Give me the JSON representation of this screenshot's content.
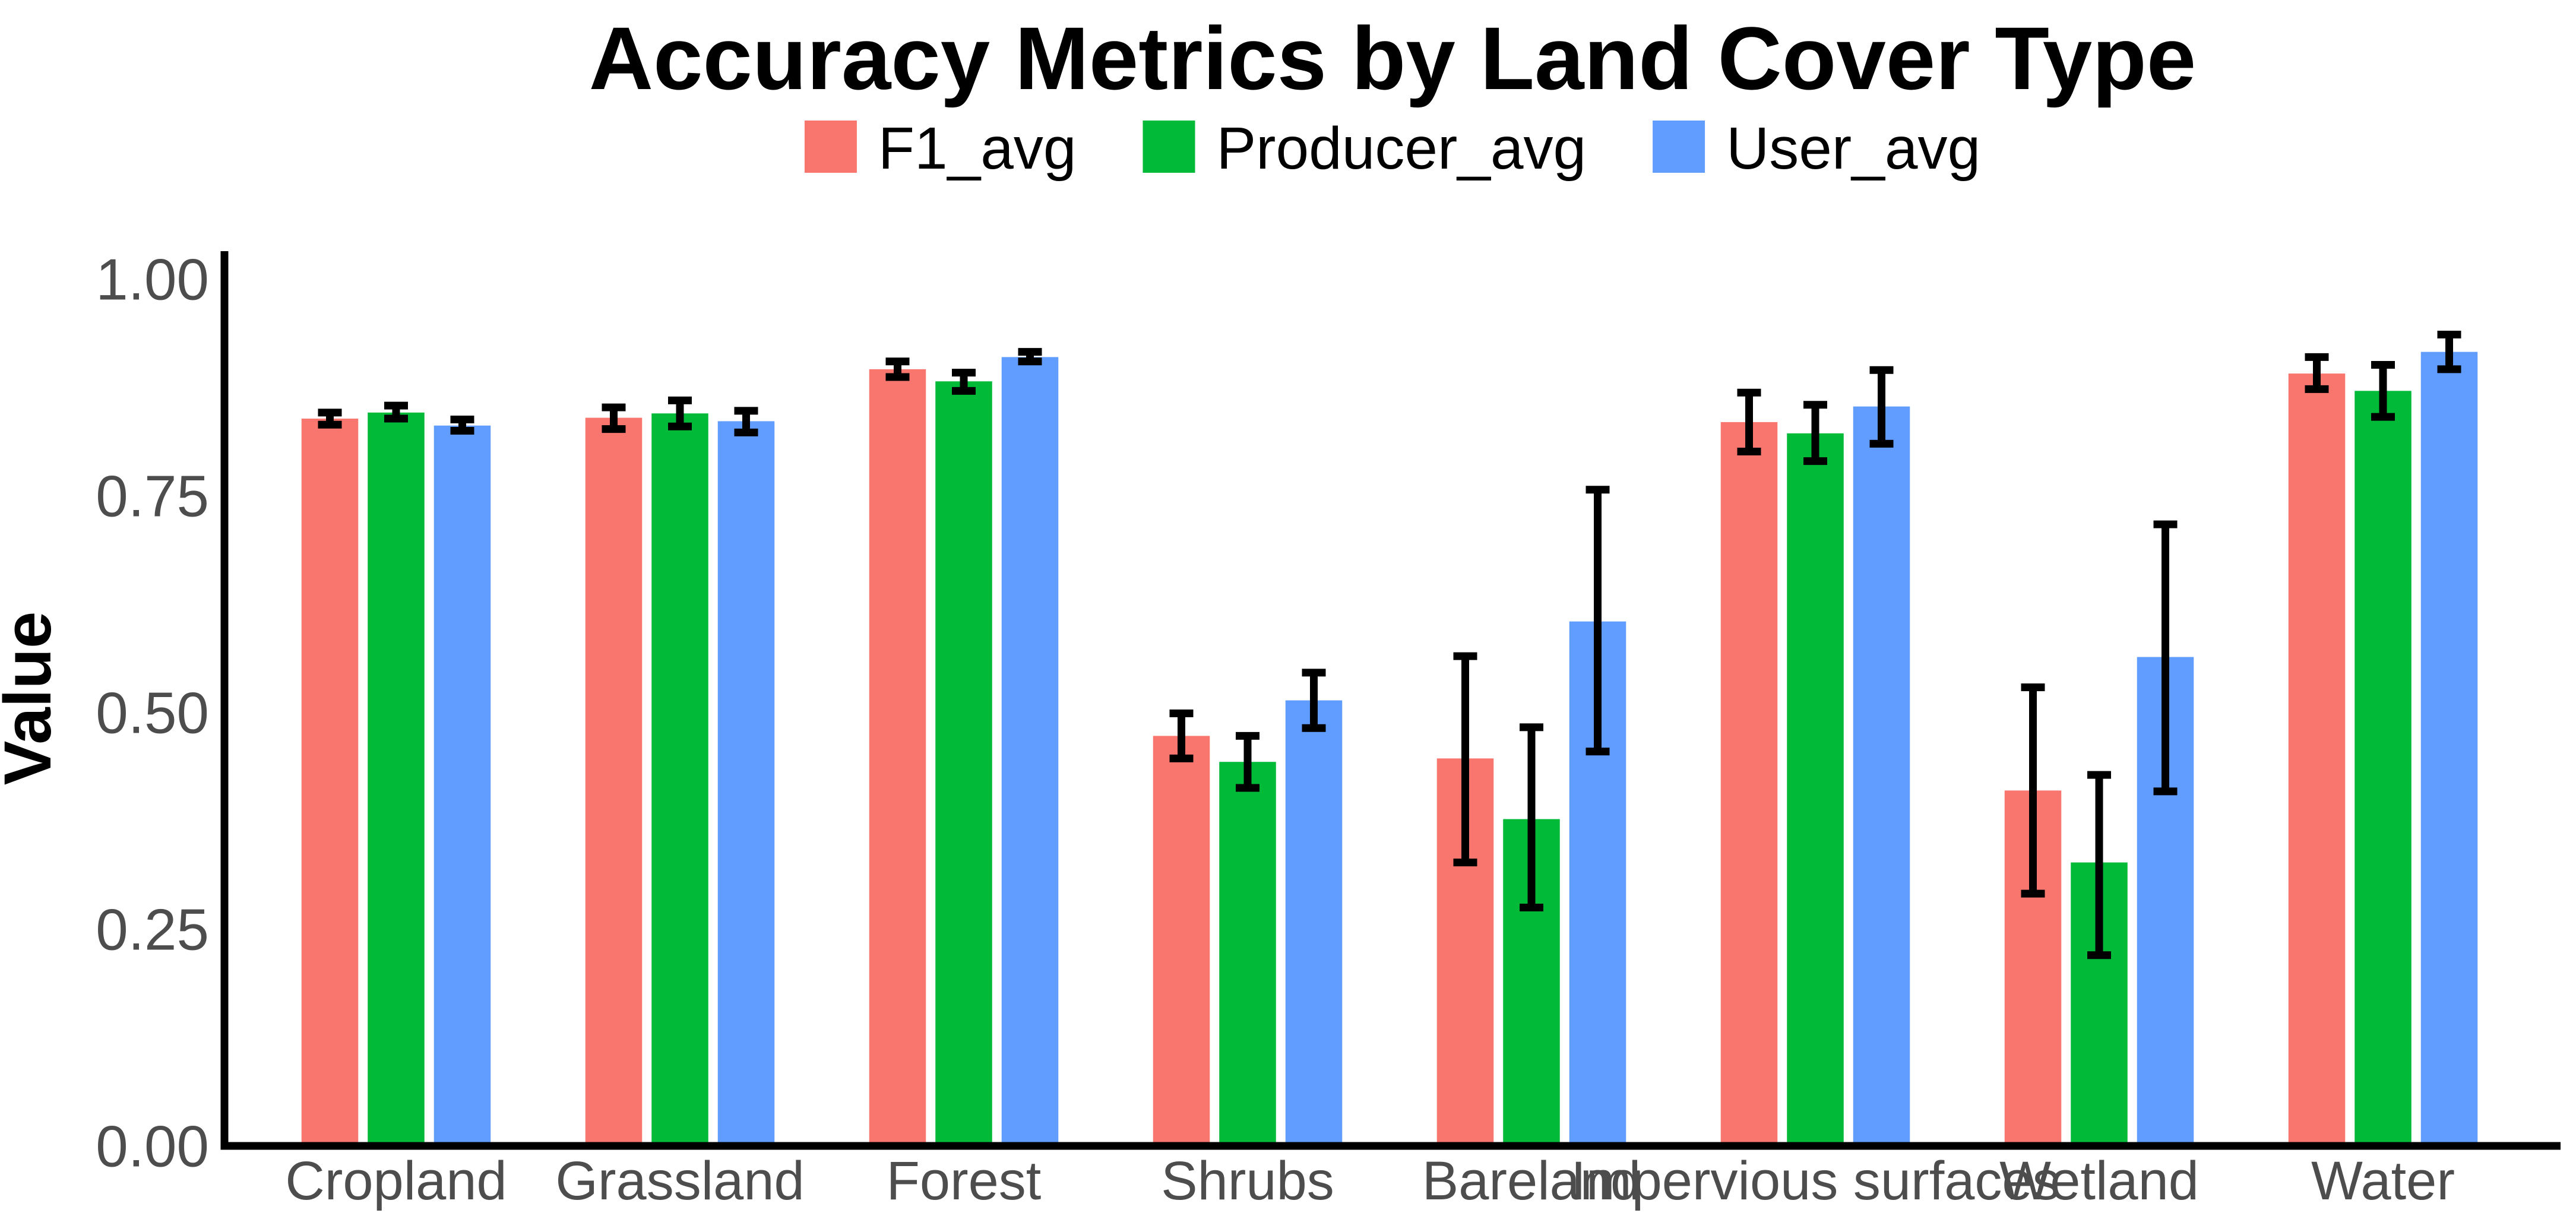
{
  "chart_data": {
    "type": "bar",
    "title": "Accuracy Metrics by Land Cover Type",
    "xlabel": "",
    "ylabel": "Value",
    "ylim": [
      0,
      1.0
    ],
    "yticks": [
      "0.00",
      "0.25",
      "0.50",
      "0.75",
      "1.00"
    ],
    "ytick_values": [
      0,
      0.25,
      0.5,
      0.75,
      1.0
    ],
    "grid": false,
    "legend_position": "top-center",
    "background_color": "#ffffff",
    "axis_color": "#000000",
    "error_bar_color": "#000000",
    "tick_label_color": "#4D4D4D",
    "categories": [
      "Cropland",
      "Grassland",
      "Forest",
      "Shrubs",
      "Bareland",
      "Impervious surfaces",
      "Wetland",
      "Water"
    ],
    "series": [
      {
        "name": "F1_avg",
        "color": "#F8766D",
        "values": [
          0.839,
          0.84,
          0.896,
          0.473,
          0.447,
          0.835,
          0.41,
          0.891
        ],
        "error_low": [
          0.832,
          0.827,
          0.887,
          0.447,
          0.327,
          0.801,
          0.291,
          0.873
        ],
        "error_high": [
          0.846,
          0.852,
          0.905,
          0.499,
          0.565,
          0.869,
          0.529,
          0.91
        ]
      },
      {
        "name": "Producer_avg",
        "color": "#00BA38",
        "values": [
          0.846,
          0.845,
          0.882,
          0.443,
          0.377,
          0.822,
          0.327,
          0.871
        ],
        "error_low": [
          0.839,
          0.83,
          0.871,
          0.413,
          0.275,
          0.79,
          0.22,
          0.841
        ],
        "error_high": [
          0.854,
          0.86,
          0.892,
          0.473,
          0.483,
          0.855,
          0.428,
          0.901
        ]
      },
      {
        "name": "User_avg",
        "color": "#619CFF",
        "values": [
          0.831,
          0.836,
          0.91,
          0.514,
          0.605,
          0.853,
          0.564,
          0.916
        ],
        "error_low": [
          0.825,
          0.823,
          0.905,
          0.482,
          0.455,
          0.81,
          0.409,
          0.896
        ],
        "error_high": [
          0.838,
          0.848,
          0.916,
          0.546,
          0.757,
          0.895,
          0.717,
          0.936
        ]
      }
    ]
  }
}
